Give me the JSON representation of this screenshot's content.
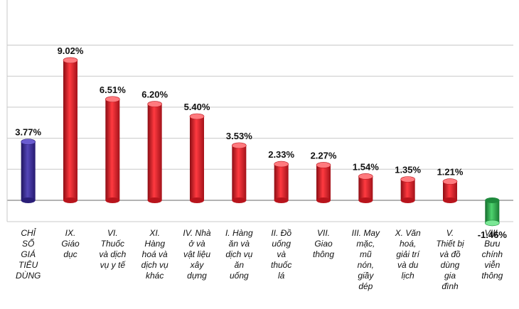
{
  "chart_data": {
    "type": "bar",
    "title": "",
    "xlabel": "",
    "ylabel": "",
    "grid": true,
    "legend": "none",
    "ylim": [
      -2,
      10
    ],
    "categories": [
      [
        "CHỈ",
        "SỐ",
        "GIÁ",
        "TIÊU",
        "DÙNG"
      ],
      [
        "IX.",
        "Giáo",
        "dục"
      ],
      [
        "VI.",
        "Thuốc",
        "và dịch",
        "vụ y tế"
      ],
      [
        "XI.",
        "Hàng",
        "hoá và",
        "dịch vụ",
        "khác"
      ],
      [
        "IV. Nhà",
        "ở và",
        "vật liệu",
        "xây",
        "dựng"
      ],
      [
        "I. Hàng",
        "ăn và",
        "dịch vụ",
        "ăn",
        "uống"
      ],
      [
        "II. Đồ",
        "uống",
        "và",
        "thuốc",
        "lá"
      ],
      [
        "VII.",
        "Giao",
        "thông"
      ],
      [
        "III. May",
        "mặc,",
        "mũ",
        "nón,",
        "giầy",
        "dép"
      ],
      [
        "X. Văn",
        "hoá,",
        "giải trí",
        "và du",
        "lịch"
      ],
      [
        "V.",
        "Thiết bị",
        "và đồ",
        "dùng",
        "gia",
        "đình"
      ],
      [
        "VIII.",
        "Bưu",
        "chính",
        "viễn",
        "thông"
      ]
    ],
    "values": [
      3.77,
      9.02,
      6.51,
      6.2,
      5.4,
      3.53,
      2.33,
      2.27,
      1.54,
      1.35,
      1.21,
      -1.46
    ],
    "value_labels": [
      "3.77%",
      "9.02%",
      "6.51%",
      "6.20%",
      "5.40%",
      "3.53%",
      "2.33%",
      "2.27%",
      "1.54%",
      "1.35%",
      "1.21%",
      "-1.46%"
    ],
    "colors": {
      "headline": "#3a2a8c",
      "positive": "#e0202a",
      "negative": "#2aa84a",
      "grid": "#c8c8c8",
      "axis": "#9a9a9a"
    }
  }
}
